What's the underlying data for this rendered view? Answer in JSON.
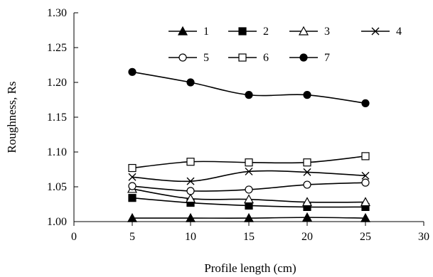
{
  "chart_data": {
    "type": "line",
    "title": "",
    "xlabel": "Profile length (cm)",
    "ylabel": "Roughness, Rs",
    "xlim": [
      0,
      30
    ],
    "ylim": [
      1.0,
      1.3
    ],
    "x_ticks": [
      "0",
      "5",
      "10",
      "15",
      "20",
      "25",
      "30"
    ],
    "y_ticks": [
      "1.00",
      "1.05",
      "1.10",
      "1.15",
      "1.20",
      "1.25",
      "1.30"
    ],
    "x": [
      5,
      10,
      15,
      20,
      25
    ],
    "grid": false,
    "legend_position": "top-right",
    "series": [
      {
        "name": "1",
        "marker": "filled-triangle",
        "values": [
          1.005,
          1.005,
          1.005,
          1.006,
          1.005
        ]
      },
      {
        "name": "2",
        "marker": "filled-square",
        "values": [
          1.034,
          1.027,
          1.023,
          1.021,
          1.021
        ]
      },
      {
        "name": "3",
        "marker": "open-triangle",
        "values": [
          1.047,
          1.033,
          1.032,
          1.028,
          1.028
        ]
      },
      {
        "name": "4",
        "marker": "x",
        "values": [
          1.064,
          1.058,
          1.072,
          1.071,
          1.066
        ]
      },
      {
        "name": "5",
        "marker": "open-circle",
        "values": [
          1.051,
          1.044,
          1.046,
          1.053,
          1.056
        ]
      },
      {
        "name": "6",
        "marker": "open-square",
        "values": [
          1.077,
          1.086,
          1.085,
          1.085,
          1.094
        ]
      },
      {
        "name": "7",
        "marker": "filled-circle",
        "values": [
          1.215,
          1.2,
          1.182,
          1.182,
          1.17
        ]
      }
    ]
  }
}
